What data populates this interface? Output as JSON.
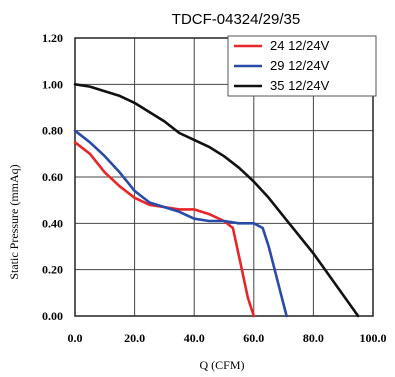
{
  "chart_data": {
    "type": "line",
    "title": "TDCF-04324/29/35",
    "xlabel": "Q (CFM)",
    "ylabel": "Static Pressure (mmAq)",
    "xlim": [
      0,
      100
    ],
    "ylim": [
      0,
      1.2
    ],
    "x_ticks": [
      "0.0",
      "20.0",
      "40.0",
      "60.0",
      "80.0",
      "100.0"
    ],
    "y_ticks": [
      "0.00",
      "0.20",
      "0.40",
      "0.60",
      "0.80",
      "1.00",
      "1.20"
    ],
    "grid": true,
    "legend_position": "top-right",
    "series": [
      {
        "name": "24  12/24V",
        "color": "#e8262a",
        "x": [
          0,
          5,
          10,
          15,
          20,
          25,
          30,
          35,
          40,
          45,
          50,
          53,
          56,
          58,
          60
        ],
        "y": [
          0.75,
          0.7,
          0.62,
          0.56,
          0.51,
          0.48,
          0.47,
          0.46,
          0.46,
          0.44,
          0.41,
          0.38,
          0.2,
          0.08,
          0.0
        ]
      },
      {
        "name": "29 12/24V",
        "color": "#2a4aa8",
        "x": [
          0,
          5,
          10,
          15,
          20,
          25,
          30,
          35,
          40,
          45,
          50,
          55,
          60,
          63,
          65,
          67,
          69,
          71
        ],
        "y": [
          0.8,
          0.75,
          0.69,
          0.62,
          0.54,
          0.49,
          0.47,
          0.45,
          0.42,
          0.41,
          0.41,
          0.4,
          0.4,
          0.38,
          0.3,
          0.2,
          0.1,
          0.0
        ]
      },
      {
        "name": "35 12/24V",
        "color": "#111111",
        "x": [
          0,
          5,
          10,
          15,
          20,
          25,
          30,
          35,
          40,
          45,
          50,
          55,
          60,
          65,
          70,
          75,
          80,
          85,
          90,
          95
        ],
        "y": [
          1.0,
          0.99,
          0.97,
          0.95,
          0.92,
          0.88,
          0.84,
          0.79,
          0.76,
          0.73,
          0.69,
          0.64,
          0.58,
          0.51,
          0.43,
          0.35,
          0.27,
          0.18,
          0.09,
          0.0
        ]
      }
    ]
  }
}
